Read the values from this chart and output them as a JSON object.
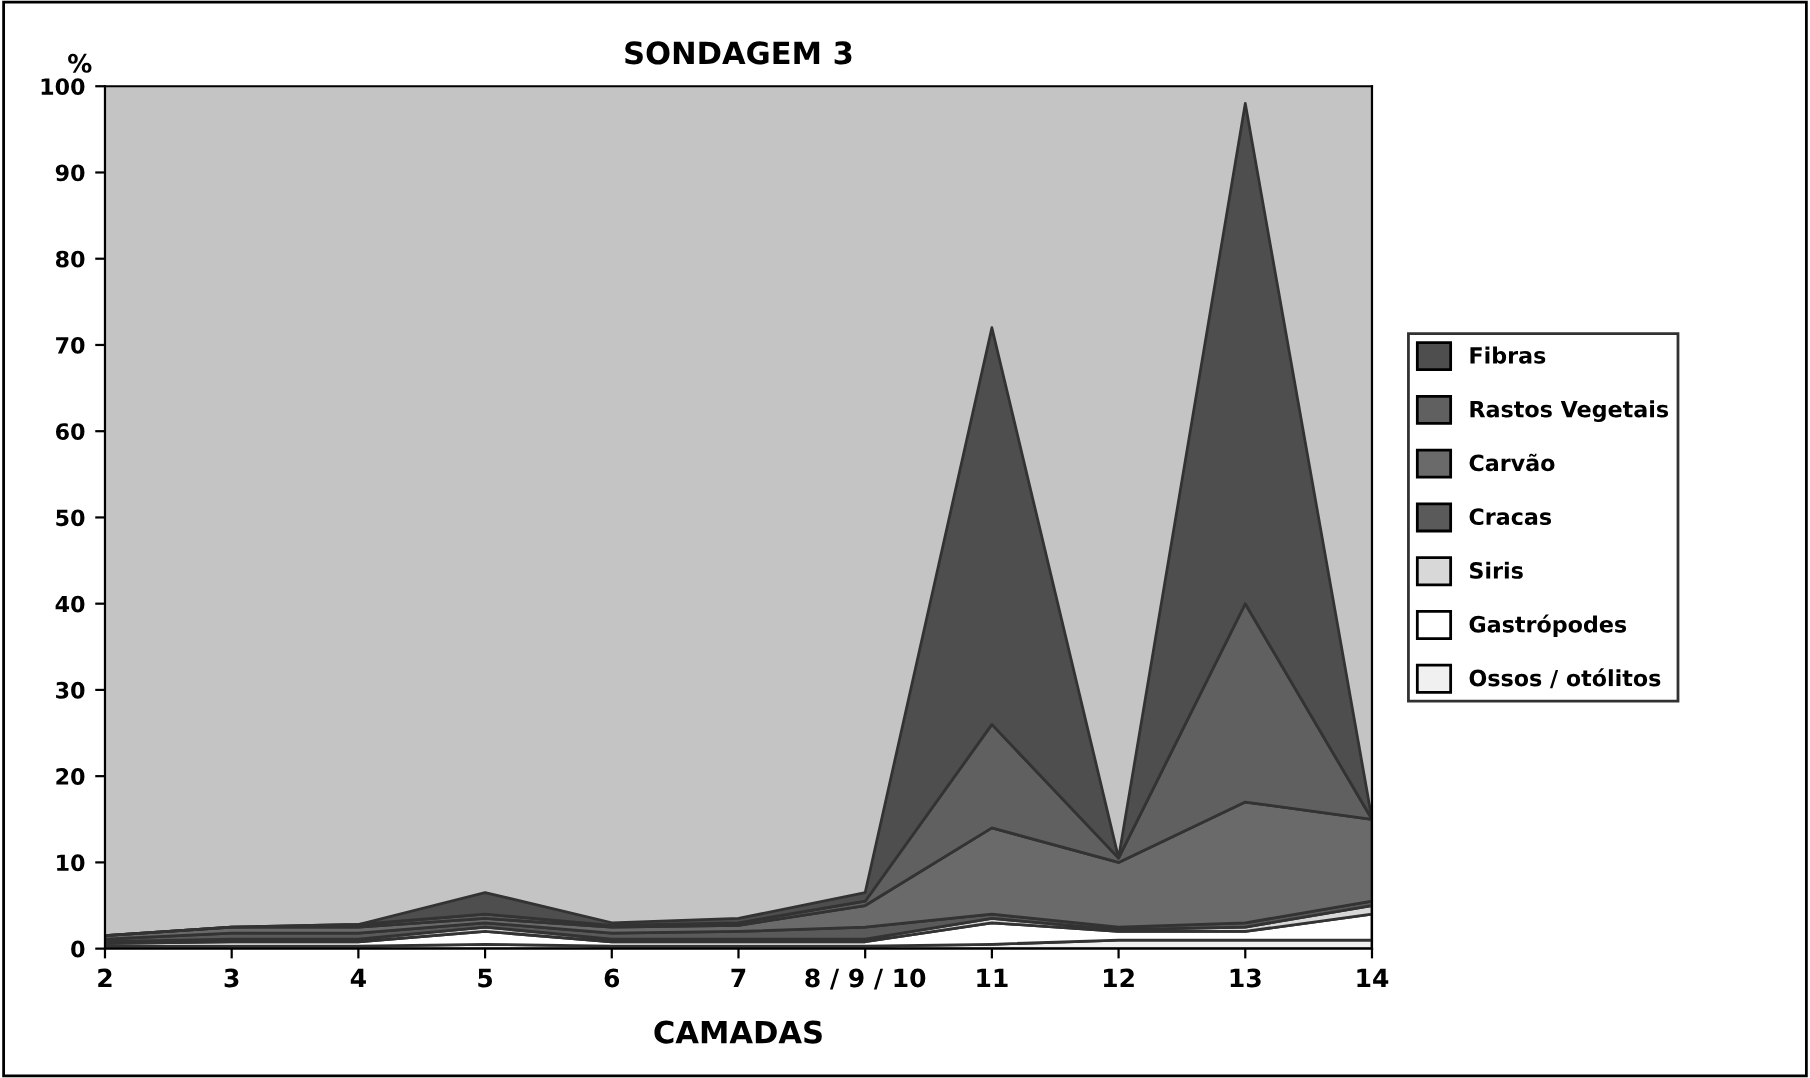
{
  "chart_data": {
    "type": "area",
    "stacked": true,
    "title": "SONDAGEM 3",
    "xlabel": "CAMADAS",
    "ylabel": "%",
    "categories": [
      "2",
      "3",
      "4",
      "5",
      "6",
      "7",
      "8 / 9 / 10",
      "11",
      "12",
      "13",
      "14"
    ],
    "ylim": [
      0,
      100
    ],
    "yticks": [
      0,
      10,
      20,
      30,
      40,
      50,
      60,
      70,
      80,
      90,
      100
    ],
    "grid": false,
    "legend": "right",
    "series": [
      {
        "name": "Ossos / otólitos",
        "color": "#f0f0f0",
        "values": [
          0.3,
          0.3,
          0.3,
          0.5,
          0.3,
          0.3,
          0.3,
          0.5,
          1,
          1,
          1
        ]
      },
      {
        "name": "Gastrópodes",
        "color": "#ffffff",
        "values": [
          0.3,
          0.5,
          0.5,
          1.5,
          0.5,
          0.5,
          0.5,
          2.5,
          1,
          1,
          3
        ]
      },
      {
        "name": "Siris",
        "color": "#d8d8d8",
        "values": [
          0.2,
          0.3,
          0.3,
          0.5,
          0.3,
          0.3,
          0.3,
          0.5,
          0.2,
          0.5,
          1
        ]
      },
      {
        "name": "Cracas",
        "color": "#5a5a5a",
        "values": [
          0.3,
          0.7,
          0.7,
          0.5,
          0.7,
          0.9,
          1.4,
          0.5,
          0.3,
          0.5,
          0.5
        ]
      },
      {
        "name": "Carvão",
        "color": "#6a6a6a",
        "values": [
          0.4,
          0.7,
          0.7,
          0.5,
          0.7,
          0.7,
          2.5,
          10,
          7.5,
          14,
          9.5
        ]
      },
      {
        "name": "Rastos Vegetais",
        "color": "#606060",
        "values": [
          0,
          0,
          0.3,
          0.5,
          0.2,
          0.3,
          0.5,
          12,
          0.5,
          23,
          0
        ]
      },
      {
        "name": "Fibras",
        "color": "#4e4e4e",
        "values": [
          0,
          0,
          0,
          2.5,
          0.3,
          0.5,
          1,
          46,
          0,
          58,
          0
        ]
      }
    ]
  }
}
